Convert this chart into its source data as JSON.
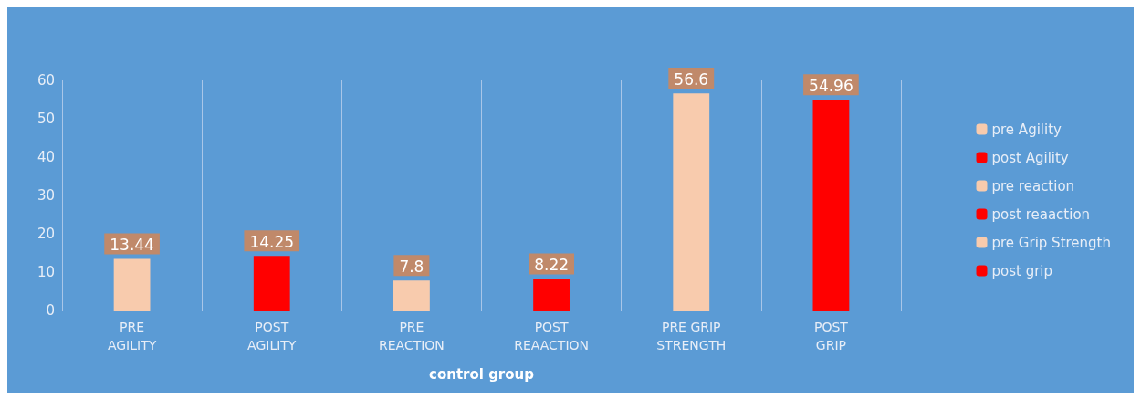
{
  "chart_data": {
    "type": "bar",
    "xlabel": "control group",
    "categories": [
      "PRE AGILITY",
      "POST AGILITY",
      "PRE REACTION",
      "POST REAACTION",
      "PRE GRIP STRENGTH",
      "POST GRIP"
    ],
    "series": [
      {
        "name": "pre Agility",
        "color": "#f8cbad",
        "values": [
          13.44,
          null,
          null,
          null,
          null,
          null
        ]
      },
      {
        "name": "post Agility",
        "color": "#ff0000",
        "values": [
          null,
          14.25,
          null,
          null,
          null,
          null
        ]
      },
      {
        "name": "pre reaction",
        "color": "#f8cbad",
        "values": [
          null,
          null,
          7.8,
          null,
          null,
          null
        ]
      },
      {
        "name": "post reaaction",
        "color": "#ff0000",
        "values": [
          null,
          null,
          null,
          8.22,
          null,
          null
        ]
      },
      {
        "name": "pre Grip Strength",
        "color": "#f8cbad",
        "values": [
          null,
          null,
          null,
          null,
          56.6,
          null
        ]
      },
      {
        "name": "post grip",
        "color": "#ff0000",
        "values": [
          null,
          null,
          null,
          null,
          null,
          54.96
        ]
      }
    ],
    "ylim": [
      0,
      60
    ],
    "yticks": [
      0,
      10,
      20,
      30,
      40,
      50,
      60
    ],
    "grid": "x",
    "legend": "right",
    "data_labels": true
  }
}
